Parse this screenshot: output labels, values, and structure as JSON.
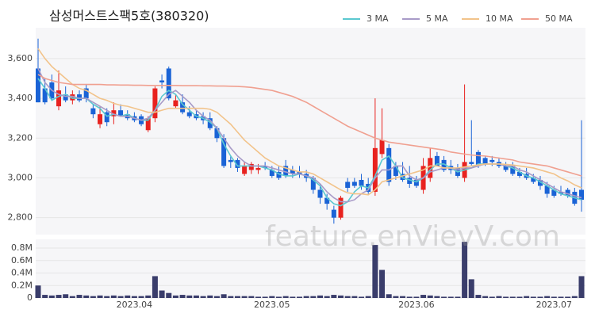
{
  "chart_data": [
    {
      "type": "candlestick",
      "title": "삼성머스트스팩5호(380320)",
      "watermark": "feature.enVievV.com",
      "up_color": "#e8221f",
      "down_color": "#1a63d6",
      "grid": true,
      "legend": "top-right",
      "ylim": [
        2715,
        3755
      ],
      "yticks": [
        {
          "value": 2800,
          "label": "2,800"
        },
        {
          "value": 3000,
          "label": "3,000"
        },
        {
          "value": 3200,
          "label": "3,200"
        },
        {
          "value": 3400,
          "label": "3,400"
        },
        {
          "value": 3600,
          "label": "3,600"
        }
      ],
      "open": [
        3550,
        3450,
        3480,
        3360,
        3420,
        3390,
        3420,
        3450,
        3350,
        3270,
        3330,
        3310,
        3340,
        3320,
        3310,
        3310,
        3240,
        3300,
        3490,
        3550,
        3360,
        3380,
        3330,
        3320,
        3310,
        3300,
        3250,
        3200,
        3090,
        3090,
        3020,
        3040,
        3040,
        3060,
        3040,
        3030,
        3060,
        3040,
        3030,
        3020,
        3000,
        2940,
        2900,
        2840,
        2800,
        2980,
        2980,
        2990,
        2970,
        2930,
        3120,
        3150,
        3060,
        3020,
        3000,
        2990,
        2940,
        3000,
        3110,
        3090,
        3060,
        3050,
        3000,
        3080,
        3130,
        3100,
        3090,
        3080,
        3060,
        3060,
        3030,
        3020,
        3000,
        2990,
        2960,
        2940,
        2930,
        2940,
        2930,
        2940
      ],
      "high": [
        3700,
        3500,
        3520,
        3540,
        3460,
        3440,
        3440,
        3470,
        3370,
        3360,
        3350,
        3380,
        3370,
        3340,
        3330,
        3320,
        3310,
        3460,
        3520,
        3560,
        3420,
        3420,
        3360,
        3340,
        3330,
        3330,
        3260,
        3220,
        3110,
        3100,
        3080,
        3080,
        3070,
        3080,
        3060,
        3060,
        3090,
        3060,
        3060,
        3040,
        3010,
        2970,
        2920,
        2860,
        2910,
        3000,
        3000,
        3020,
        3000,
        3400,
        3350,
        3170,
        3080,
        3080,
        3060,
        3010,
        3100,
        3150,
        3130,
        3110,
        3090,
        3070,
        3470,
        3290,
        3140,
        3110,
        3110,
        3100,
        3080,
        3080,
        3050,
        3050,
        3020,
        3010,
        2980,
        2960,
        2960,
        2950,
        2950,
        3290
      ],
      "low": [
        3380,
        3370,
        3390,
        3340,
        3380,
        3370,
        3380,
        3380,
        3300,
        3250,
        3260,
        3270,
        3310,
        3290,
        3280,
        3260,
        3230,
        3280,
        3450,
        3390,
        3350,
        3320,
        3300,
        3290,
        3270,
        3240,
        3180,
        3050,
        3050,
        3030,
        3010,
        3020,
        3020,
        3040,
        3000,
        2990,
        3000,
        3000,
        3000,
        2980,
        2920,
        2870,
        2840,
        2770,
        2790,
        2930,
        2950,
        2940,
        2920,
        2910,
        3100,
        2960,
        2990,
        2980,
        2950,
        2950,
        2920,
        2980,
        3060,
        3030,
        3020,
        3000,
        2980,
        3060,
        3050,
        3060,
        3060,
        3050,
        3030,
        3010,
        3000,
        2990,
        2970,
        2940,
        2900,
        2900,
        2910,
        2900,
        2860,
        2830
      ],
      "close": [
        3380,
        3380,
        3400,
        3440,
        3390,
        3420,
        3390,
        3400,
        3320,
        3320,
        3280,
        3340,
        3310,
        3300,
        3290,
        3270,
        3300,
        3450,
        3480,
        3400,
        3390,
        3330,
        3310,
        3300,
        3290,
        3250,
        3200,
        3060,
        3080,
        3050,
        3060,
        3070,
        3050,
        3050,
        3010,
        3000,
        3010,
        3020,
        3020,
        3000,
        2940,
        2900,
        2870,
        2800,
        2900,
        2950,
        2960,
        2960,
        2930,
        3150,
        3190,
        2980,
        3010,
        2990,
        2970,
        2960,
        3060,
        3100,
        3060,
        3040,
        3040,
        3010,
        3080,
        3070,
        3060,
        3070,
        3080,
        3060,
        3040,
        3020,
        3010,
        3000,
        2980,
        2960,
        2920,
        2910,
        2920,
        2910,
        2870,
        2890
      ],
      "series": [
        {
          "name": "3 MA",
          "color": "#5bc8d0",
          "values": [
            3500,
            3450,
            3390,
            3410,
            3420,
            3400,
            3400,
            3400,
            3370,
            3350,
            3310,
            3320,
            3310,
            3320,
            3300,
            3290,
            3290,
            3340,
            3410,
            3440,
            3420,
            3370,
            3340,
            3310,
            3300,
            3280,
            3250,
            3170,
            3110,
            3060,
            3060,
            3060,
            3060,
            3050,
            3040,
            3020,
            3010,
            3010,
            3020,
            3010,
            2990,
            2960,
            2900,
            2870,
            2860,
            2880,
            2930,
            2960,
            2950,
            3010,
            3090,
            3110,
            3060,
            3000,
            2990,
            2980,
            3000,
            3040,
            3070,
            3070,
            3050,
            3030,
            3040,
            3050,
            3070,
            3070,
            3070,
            3070,
            3060,
            3050,
            3030,
            3010,
            3000,
            2980,
            2960,
            2940,
            2920,
            2910,
            2900,
            2890
          ]
        },
        {
          "name": "5 MA",
          "color": "#a89bc8",
          "values": [
            3550,
            3480,
            3440,
            3420,
            3410,
            3410,
            3400,
            3400,
            3380,
            3360,
            3340,
            3320,
            3310,
            3310,
            3300,
            3290,
            3300,
            3340,
            3380,
            3420,
            3440,
            3410,
            3380,
            3340,
            3310,
            3290,
            3250,
            3200,
            3150,
            3110,
            3080,
            3060,
            3060,
            3060,
            3050,
            3040,
            3030,
            3020,
            3020,
            3010,
            3000,
            2970,
            2930,
            2900,
            2880,
            2880,
            2890,
            2920,
            2940,
            3000,
            3040,
            3040,
            3060,
            3060,
            3010,
            2990,
            3000,
            3030,
            3040,
            3050,
            3050,
            3040,
            3050,
            3050,
            3060,
            3070,
            3070,
            3070,
            3060,
            3060,
            3040,
            3030,
            3010,
            2990,
            2970,
            2950,
            2930,
            2920,
            2910,
            2900
          ]
        },
        {
          "name": "10 MA",
          "color": "#f2c38a",
          "values": [
            3650,
            3600,
            3560,
            3530,
            3500,
            3470,
            3450,
            3440,
            3420,
            3400,
            3390,
            3375,
            3365,
            3360,
            3350,
            3340,
            3330,
            3330,
            3340,
            3350,
            3350,
            3350,
            3350,
            3350,
            3350,
            3345,
            3330,
            3300,
            3270,
            3230,
            3190,
            3160,
            3130,
            3100,
            3080,
            3060,
            3050,
            3040,
            3030,
            3030,
            3020,
            3000,
            2980,
            2960,
            2940,
            2925,
            2920,
            2920,
            2915,
            2940,
            2980,
            2990,
            3000,
            3010,
            3020,
            3030,
            3040,
            3060,
            3060,
            3050,
            3050,
            3050,
            3055,
            3060,
            3065,
            3070,
            3070,
            3070,
            3068,
            3065,
            3060,
            3055,
            3050,
            3040,
            3030,
            3020,
            3000,
            2985,
            2965,
            2950
          ]
        },
        {
          "name": "50 MA",
          "color": "#f0a090",
          "values": [
            3520,
            3500,
            3490,
            3480,
            3475,
            3470,
            3470,
            3470,
            3470,
            3470,
            3468,
            3468,
            3467,
            3467,
            3466,
            3466,
            3465,
            3465,
            3465,
            3465,
            3465,
            3464,
            3464,
            3464,
            3463,
            3463,
            3462,
            3462,
            3461,
            3460,
            3458,
            3455,
            3450,
            3445,
            3440,
            3430,
            3420,
            3410,
            3395,
            3380,
            3360,
            3340,
            3320,
            3300,
            3280,
            3260,
            3245,
            3230,
            3215,
            3200,
            3190,
            3180,
            3175,
            3170,
            3165,
            3160,
            3155,
            3150,
            3145,
            3140,
            3130,
            3125,
            3120,
            3115,
            3112,
            3110,
            3105,
            3100,
            3095,
            3090,
            3080,
            3075,
            3070,
            3065,
            3060,
            3050,
            3040,
            3030,
            3020,
            3010
          ]
        }
      ]
    },
    {
      "type": "bar",
      "color": "#3a3d6b",
      "grid": true,
      "ylim": [
        0,
        940000
      ],
      "yticks": [
        0,
        {
          "value": 200000,
          "label": "0.2M"
        },
        {
          "value": 400000,
          "label": "0.4M"
        },
        {
          "value": 600000,
          "label": "0.6M"
        },
        {
          "value": 800000,
          "label": "0.8M"
        }
      ],
      "categories": [
        null,
        null,
        null,
        null,
        null,
        null,
        null,
        null,
        null,
        null,
        null,
        null,
        null,
        null,
        "2023.04",
        null,
        null,
        null,
        null,
        null,
        null,
        null,
        null,
        null,
        null,
        null,
        null,
        null,
        null,
        null,
        null,
        null,
        null,
        null,
        "2023.05",
        null,
        null,
        null,
        null,
        null,
        null,
        null,
        null,
        null,
        null,
        null,
        null,
        null,
        null,
        null,
        null,
        null,
        null,
        null,
        null,
        "2023.06",
        null,
        null,
        null,
        null,
        null,
        null,
        null,
        null,
        null,
        null,
        null,
        null,
        null,
        null,
        null,
        null,
        null,
        null,
        null,
        "2023.07",
        null,
        null,
        null,
        null
      ],
      "values": [
        200000,
        50000,
        40000,
        50000,
        60000,
        30000,
        50000,
        40000,
        30000,
        40000,
        30000,
        40000,
        30000,
        40000,
        30000,
        30000,
        40000,
        350000,
        120000,
        80000,
        40000,
        50000,
        40000,
        40000,
        30000,
        40000,
        30000,
        60000,
        30000,
        30000,
        30000,
        30000,
        20000,
        20000,
        30000,
        20000,
        30000,
        20000,
        20000,
        30000,
        30000,
        40000,
        30000,
        50000,
        40000,
        30000,
        30000,
        20000,
        30000,
        850000,
        450000,
        60000,
        30000,
        30000,
        20000,
        20000,
        50000,
        40000,
        30000,
        20000,
        20000,
        20000,
        900000,
        300000,
        50000,
        30000,
        20000,
        30000,
        20000,
        20000,
        20000,
        30000,
        20000,
        20000,
        30000,
        20000,
        20000,
        20000,
        30000,
        350000
      ]
    }
  ]
}
